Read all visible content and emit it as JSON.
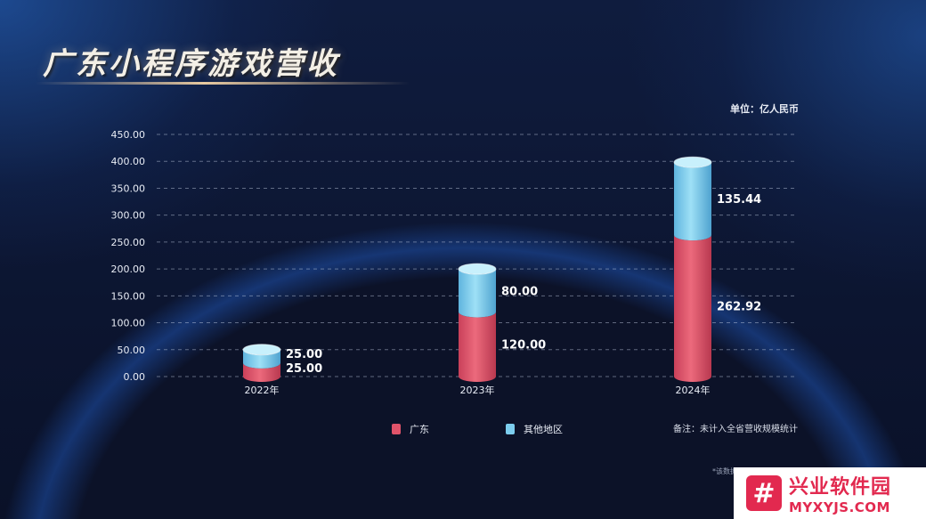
{
  "title": "广东小程序游戏营收",
  "unit_label": "单位：亿人民币",
  "note": "备注：未计入全省营收规模统计",
  "source_note_fragment": "*该数据",
  "legend": [
    {
      "label": "广东",
      "color": "#e0536a"
    },
    {
      "label": "其他地区",
      "color": "#7ccdee"
    }
  ],
  "watermark": {
    "cn": "兴业软件园",
    "en": "MYXYJS.COM",
    "logo_glyph": "#"
  },
  "chart_data": {
    "type": "bar",
    "stacked": true,
    "categories": [
      "2022年",
      "2023年",
      "2024年"
    ],
    "series": [
      {
        "name": "广东",
        "values": [
          25.0,
          120.0,
          262.92
        ],
        "labels": [
          "25.00",
          "120.00",
          "262.92"
        ],
        "color": "#e0536a"
      },
      {
        "name": "其他地区",
        "values": [
          25.0,
          80.0,
          135.44
        ],
        "labels": [
          "25.00",
          "80.00",
          "135.44"
        ],
        "color": "#7ccdee"
      }
    ],
    "ylim": [
      0,
      450
    ],
    "yticks": [
      "0.00",
      "50.00",
      "100.00",
      "150.00",
      "200.00",
      "250.00",
      "300.00",
      "350.00",
      "400.00",
      "450.00"
    ],
    "grid": true,
    "legend_position": "bottom"
  }
}
